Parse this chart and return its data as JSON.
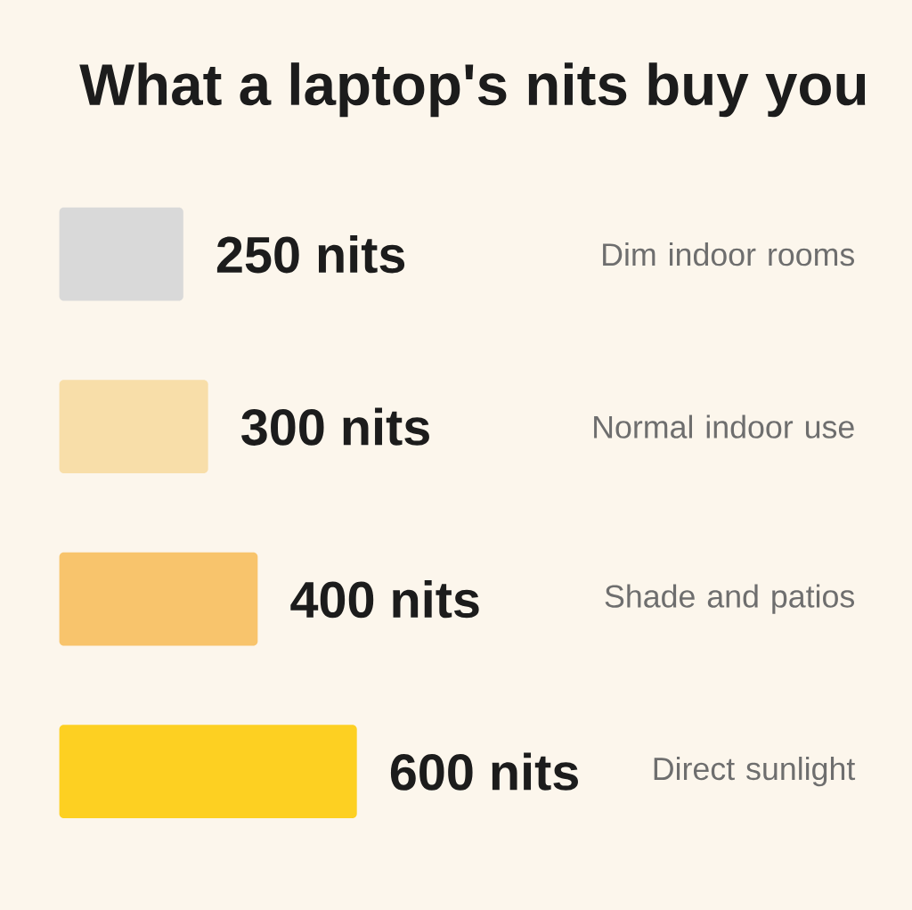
{
  "chart_data": {
    "type": "bar",
    "orientation": "horizontal",
    "title": "What a laptop's nits buy you",
    "categories": [
      "Dim indoor rooms",
      "Normal indoor use",
      "Shade and patios",
      "Direct sunlight"
    ],
    "values": [
      250,
      300,
      400,
      600
    ],
    "colors": [
      "#d9d9d9",
      "#f8dea9",
      "#f8c46c",
      "#fdd022"
    ],
    "value_labels": [
      "250 nits",
      "300 nits",
      "400 nits",
      "600 nits"
    ]
  }
}
